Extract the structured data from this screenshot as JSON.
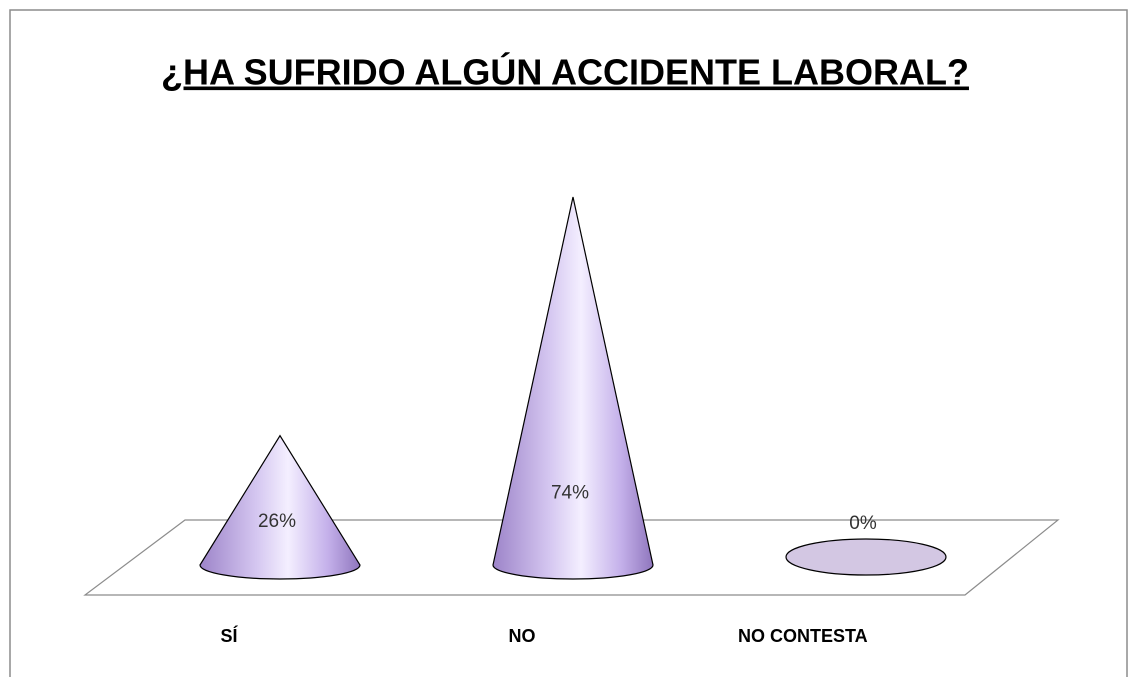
{
  "chart_data": {
    "type": "cone",
    "title": "¿HA SUFRIDO ALGÚN ACCIDENTE LABORAL?",
    "categories": [
      "SÍ",
      "NO",
      "NO CONTESTA"
    ],
    "values": [
      26,
      74,
      0
    ],
    "value_labels": [
      "26%",
      "74%",
      "0%"
    ],
    "color": "#b8a2e0"
  }
}
